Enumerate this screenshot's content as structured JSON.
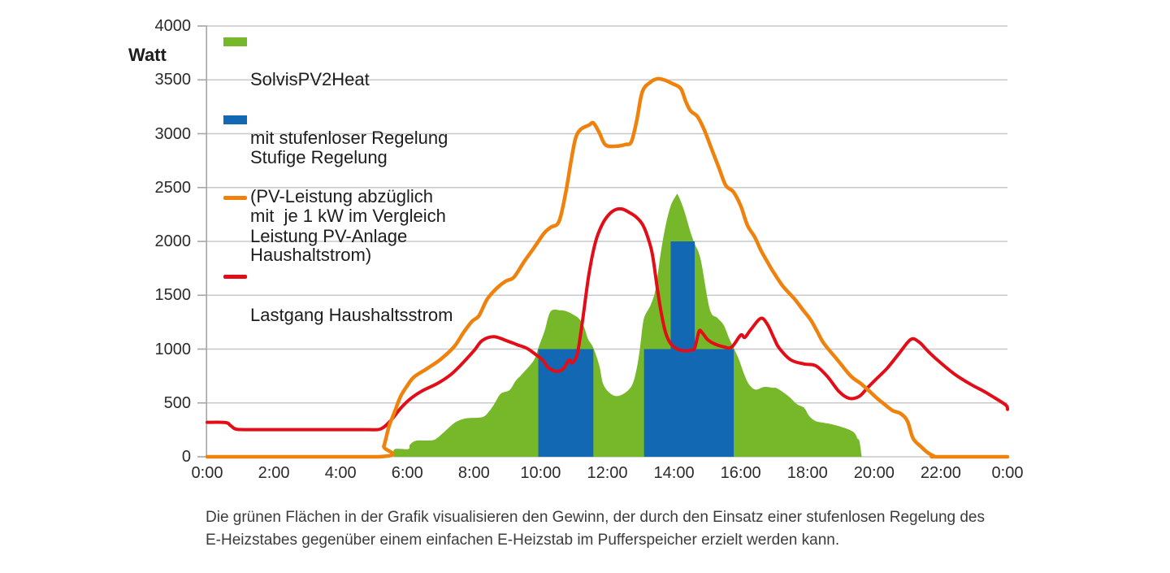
{
  "y_axis_unit_label": "Watt",
  "legend": {
    "items": [
      {
        "type": "area",
        "color": "#76b82a",
        "lines": [
          "SolvisPV2Heat",
          "mit stufenloser Regelung",
          "(PV-Leistung abzüglich",
          "Haushaltstrom)"
        ]
      },
      {
        "type": "area",
        "color": "#1268b3",
        "lines": [
          "Stufige Regelung",
          "mit  je 1 kW im Vergleich"
        ]
      },
      {
        "type": "line",
        "color": "#ef820d",
        "lines": [
          "Leistung PV-Anlage"
        ]
      },
      {
        "type": "line",
        "color": "#e30d17",
        "lines": [
          "Lastgang Haushaltsstrom"
        ]
      }
    ]
  },
  "caption": {
    "line1": "Die grünen Flächen in der Grafik visualisieren den Gewinn, der durch den Einsatz einer stufenlosen Regelung des",
    "line2": "E-Heizstabes gegenüber einem einfachen E-Heizstab im Pufferspeicher erzielt werden kann."
  },
  "chart_data": {
    "type": "combo: area + step-bars + lines",
    "ylabel": "Watt",
    "x_unit": "time of day (hours)",
    "xlim": [
      0,
      24
    ],
    "ylim": [
      0,
      4000
    ],
    "grid": true,
    "legend_position": "top-left inside plot",
    "colors": {
      "grid": "#c8c8c8",
      "axis": "#a6a6a6",
      "green": "#76b82a",
      "blue": "#1268b3",
      "orange": "#ef820d",
      "red": "#e30d17"
    },
    "y_ticks": [
      {
        "v": 0,
        "label": "0"
      },
      {
        "v": 500,
        "label": "500"
      },
      {
        "v": 1000,
        "label": "1000"
      },
      {
        "v": 1500,
        "label": "1500"
      },
      {
        "v": 2000,
        "label": "2000"
      },
      {
        "v": 2500,
        "label": "2500"
      },
      {
        "v": 3000,
        "label": "3000"
      },
      {
        "v": 3500,
        "label": "3500"
      },
      {
        "v": 4000,
        "label": "4000"
      }
    ],
    "x_ticks": [
      {
        "t": 0,
        "label": "0:00"
      },
      {
        "t": 2,
        "label": "2:00"
      },
      {
        "t": 4,
        "label": "4:00"
      },
      {
        "t": 6,
        "label": "6:00"
      },
      {
        "t": 8,
        "label": "8:00"
      },
      {
        "t": 10,
        "label": "10:00"
      },
      {
        "t": 12,
        "label": "12:00"
      },
      {
        "t": 14,
        "label": "14:00"
      },
      {
        "t": 16,
        "label": "16:00"
      },
      {
        "t": 18,
        "label": "18:00"
      },
      {
        "t": 20,
        "label": "20:00"
      },
      {
        "t": 22,
        "label": "22:00"
      },
      {
        "t": 24,
        "label": "0:00"
      }
    ],
    "series": [
      {
        "name": "SolvisPV2Heat mit stufenloser Regelung (PV-Leistung abzüglich Haushaltstrom)",
        "type": "area",
        "color": "#76b82a",
        "points": [
          [
            5.6,
            0
          ],
          [
            5.62,
            70
          ],
          [
            6.03,
            72
          ],
          [
            6.08,
            112
          ],
          [
            6.28,
            150
          ],
          [
            6.78,
            155
          ],
          [
            7.05,
            215
          ],
          [
            7.3,
            285
          ],
          [
            7.5,
            330
          ],
          [
            7.78,
            358
          ],
          [
            8.25,
            368
          ],
          [
            8.45,
            420
          ],
          [
            8.62,
            495
          ],
          [
            8.8,
            585
          ],
          [
            9.07,
            620
          ],
          [
            9.25,
            705
          ],
          [
            9.45,
            770
          ],
          [
            9.8,
            898
          ],
          [
            9.93,
            1010
          ],
          [
            10.12,
            1170
          ],
          [
            10.3,
            1350
          ],
          [
            10.6,
            1360
          ],
          [
            10.78,
            1350
          ],
          [
            10.95,
            1325
          ],
          [
            11.15,
            1283
          ],
          [
            11.3,
            1207
          ],
          [
            11.42,
            1094
          ],
          [
            11.58,
            1011
          ],
          [
            11.76,
            845
          ],
          [
            11.88,
            672
          ],
          [
            12.12,
            581
          ],
          [
            12.35,
            566
          ],
          [
            12.63,
            619
          ],
          [
            12.78,
            694
          ],
          [
            12.9,
            850
          ],
          [
            12.98,
            1011
          ],
          [
            13.06,
            1223
          ],
          [
            13.13,
            1313
          ],
          [
            13.3,
            1410
          ],
          [
            13.45,
            1560
          ],
          [
            13.6,
            1890
          ],
          [
            13.75,
            2150
          ],
          [
            13.9,
            2330
          ],
          [
            14.05,
            2420
          ],
          [
            14.12,
            2430
          ],
          [
            14.3,
            2290
          ],
          [
            14.5,
            2080
          ],
          [
            14.62,
            1977
          ],
          [
            14.8,
            1830
          ],
          [
            15.07,
            1373
          ],
          [
            15.3,
            1290
          ],
          [
            15.49,
            1223
          ],
          [
            15.66,
            1094
          ],
          [
            15.79,
            1011
          ],
          [
            15.95,
            900
          ],
          [
            16.1,
            770
          ],
          [
            16.25,
            672
          ],
          [
            16.45,
            624
          ],
          [
            16.7,
            648
          ],
          [
            16.95,
            641
          ],
          [
            17.1,
            634
          ],
          [
            17.45,
            558
          ],
          [
            17.68,
            490
          ],
          [
            17.9,
            455
          ],
          [
            18.05,
            380
          ],
          [
            18.24,
            332
          ],
          [
            18.5,
            315
          ],
          [
            18.73,
            302
          ],
          [
            19.15,
            264
          ],
          [
            19.4,
            225
          ],
          [
            19.5,
            170
          ],
          [
            19.56,
            143
          ],
          [
            19.63,
            0
          ]
        ]
      },
      {
        "name": "Stufige Regelung mit je 1 kW im Vergleich",
        "type": "bars",
        "color": "#1268b3",
        "bars": [
          {
            "x0": 9.93,
            "x1": 11.58,
            "value": 1000
          },
          {
            "x0": 13.1,
            "x1": 15.79,
            "value": 1000
          },
          {
            "x0": 13.9,
            "x1": 14.62,
            "value": 2000
          }
        ]
      },
      {
        "name": "Lastgang Haushaltsstrom",
        "type": "line",
        "color": "#e30d17",
        "width": 4,
        "points": [
          [
            0,
            320
          ],
          [
            0.55,
            318
          ],
          [
            0.7,
            290
          ],
          [
            0.85,
            258
          ],
          [
            1.1,
            252
          ],
          [
            2.0,
            252
          ],
          [
            3.0,
            252
          ],
          [
            4.0,
            252
          ],
          [
            4.8,
            252
          ],
          [
            5.2,
            258
          ],
          [
            5.5,
            335
          ],
          [
            5.8,
            450
          ],
          [
            6.1,
            540
          ],
          [
            6.45,
            612
          ],
          [
            6.9,
            680
          ],
          [
            7.3,
            762
          ],
          [
            7.6,
            850
          ],
          [
            8.0,
            985
          ],
          [
            8.25,
            1080
          ],
          [
            8.6,
            1115
          ],
          [
            9.0,
            1075
          ],
          [
            9.3,
            1040
          ],
          [
            9.6,
            1005
          ],
          [
            9.85,
            950
          ],
          [
            10.05,
            900
          ],
          [
            10.25,
            823
          ],
          [
            10.5,
            792
          ],
          [
            10.7,
            825
          ],
          [
            10.85,
            898
          ],
          [
            10.95,
            873
          ],
          [
            11.1,
            958
          ],
          [
            11.25,
            1250
          ],
          [
            11.45,
            1700
          ],
          [
            11.65,
            2000
          ],
          [
            11.85,
            2160
          ],
          [
            12.05,
            2250
          ],
          [
            12.25,
            2295
          ],
          [
            12.45,
            2300
          ],
          [
            12.65,
            2270
          ],
          [
            12.85,
            2230
          ],
          [
            13.05,
            2160
          ],
          [
            13.2,
            2050
          ],
          [
            13.35,
            1880
          ],
          [
            13.5,
            1560
          ],
          [
            13.62,
            1330
          ],
          [
            13.75,
            1150
          ],
          [
            13.9,
            1050
          ],
          [
            14.1,
            1000
          ],
          [
            14.3,
            985
          ],
          [
            14.5,
            990
          ],
          [
            14.62,
            1010
          ],
          [
            14.75,
            1165
          ],
          [
            14.85,
            1150
          ],
          [
            15.0,
            1090
          ],
          [
            15.2,
            1050
          ],
          [
            15.5,
            1020
          ],
          [
            15.73,
            1019
          ],
          [
            16.0,
            1130
          ],
          [
            16.12,
            1108
          ],
          [
            16.3,
            1180
          ],
          [
            16.6,
            1285
          ],
          [
            16.8,
            1230
          ],
          [
            17.0,
            1100
          ],
          [
            17.15,
            1011
          ],
          [
            17.5,
            900
          ],
          [
            17.9,
            862
          ],
          [
            18.25,
            845
          ],
          [
            18.6,
            745
          ],
          [
            18.95,
            605
          ],
          [
            19.25,
            543
          ],
          [
            19.55,
            560
          ],
          [
            19.8,
            640
          ],
          [
            20.05,
            718
          ],
          [
            20.4,
            825
          ],
          [
            20.75,
            960
          ],
          [
            21.1,
            1090
          ],
          [
            21.35,
            1065
          ],
          [
            21.6,
            985
          ],
          [
            21.9,
            898
          ],
          [
            22.4,
            770
          ],
          [
            22.9,
            672
          ],
          [
            23.25,
            615
          ],
          [
            23.55,
            560
          ],
          [
            23.95,
            480
          ],
          [
            24.0,
            440
          ]
        ]
      },
      {
        "name": "Leistung PV-Anlage",
        "type": "line",
        "color": "#ef820d",
        "width": 4.5,
        "points": [
          [
            0,
            0
          ],
          [
            5.15,
            0
          ],
          [
            5.3,
            100
          ],
          [
            5.45,
            280
          ],
          [
            5.6,
            400
          ],
          [
            5.8,
            560
          ],
          [
            6.0,
            660
          ],
          [
            6.2,
            740
          ],
          [
            6.6,
            820
          ],
          [
            7.0,
            905
          ],
          [
            7.4,
            1020
          ],
          [
            7.7,
            1160
          ],
          [
            7.95,
            1260
          ],
          [
            8.15,
            1310
          ],
          [
            8.4,
            1465
          ],
          [
            8.7,
            1570
          ],
          [
            8.95,
            1630
          ],
          [
            9.2,
            1668
          ],
          [
            9.5,
            1810
          ],
          [
            9.8,
            1940
          ],
          [
            10.1,
            2075
          ],
          [
            10.3,
            2130
          ],
          [
            10.55,
            2185
          ],
          [
            10.75,
            2450
          ],
          [
            10.92,
            2760
          ],
          [
            11.05,
            2960
          ],
          [
            11.2,
            3040
          ],
          [
            11.45,
            3080
          ],
          [
            11.58,
            3100
          ],
          [
            11.75,
            3015
          ],
          [
            11.95,
            2895
          ],
          [
            12.3,
            2885
          ],
          [
            12.55,
            2900
          ],
          [
            12.72,
            2925
          ],
          [
            12.88,
            3120
          ],
          [
            13.05,
            3390
          ],
          [
            13.3,
            3480
          ],
          [
            13.5,
            3510
          ],
          [
            13.7,
            3500
          ],
          [
            13.95,
            3465
          ],
          [
            14.2,
            3420
          ],
          [
            14.35,
            3300
          ],
          [
            14.5,
            3210
          ],
          [
            14.7,
            3160
          ],
          [
            14.9,
            3040
          ],
          [
            15.1,
            2880
          ],
          [
            15.35,
            2680
          ],
          [
            15.55,
            2520
          ],
          [
            15.78,
            2460
          ],
          [
            16.0,
            2330
          ],
          [
            16.2,
            2150
          ],
          [
            16.42,
            2040
          ],
          [
            16.6,
            1920
          ],
          [
            16.8,
            1810
          ],
          [
            16.95,
            1730
          ],
          [
            17.25,
            1590
          ],
          [
            17.6,
            1470
          ],
          [
            17.85,
            1370
          ],
          [
            18.1,
            1270
          ],
          [
            18.3,
            1160
          ],
          [
            18.5,
            1050
          ],
          [
            18.9,
            900
          ],
          [
            19.3,
            750
          ],
          [
            19.6,
            680
          ],
          [
            19.82,
            620
          ],
          [
            20.1,
            540
          ],
          [
            20.3,
            490
          ],
          [
            20.55,
            430
          ],
          [
            20.8,
            400
          ],
          [
            21.0,
            330
          ],
          [
            21.17,
            170
          ],
          [
            21.42,
            90
          ],
          [
            21.6,
            40
          ],
          [
            21.8,
            5
          ],
          [
            21.9,
            0
          ],
          [
            24,
            0
          ]
        ]
      }
    ]
  }
}
